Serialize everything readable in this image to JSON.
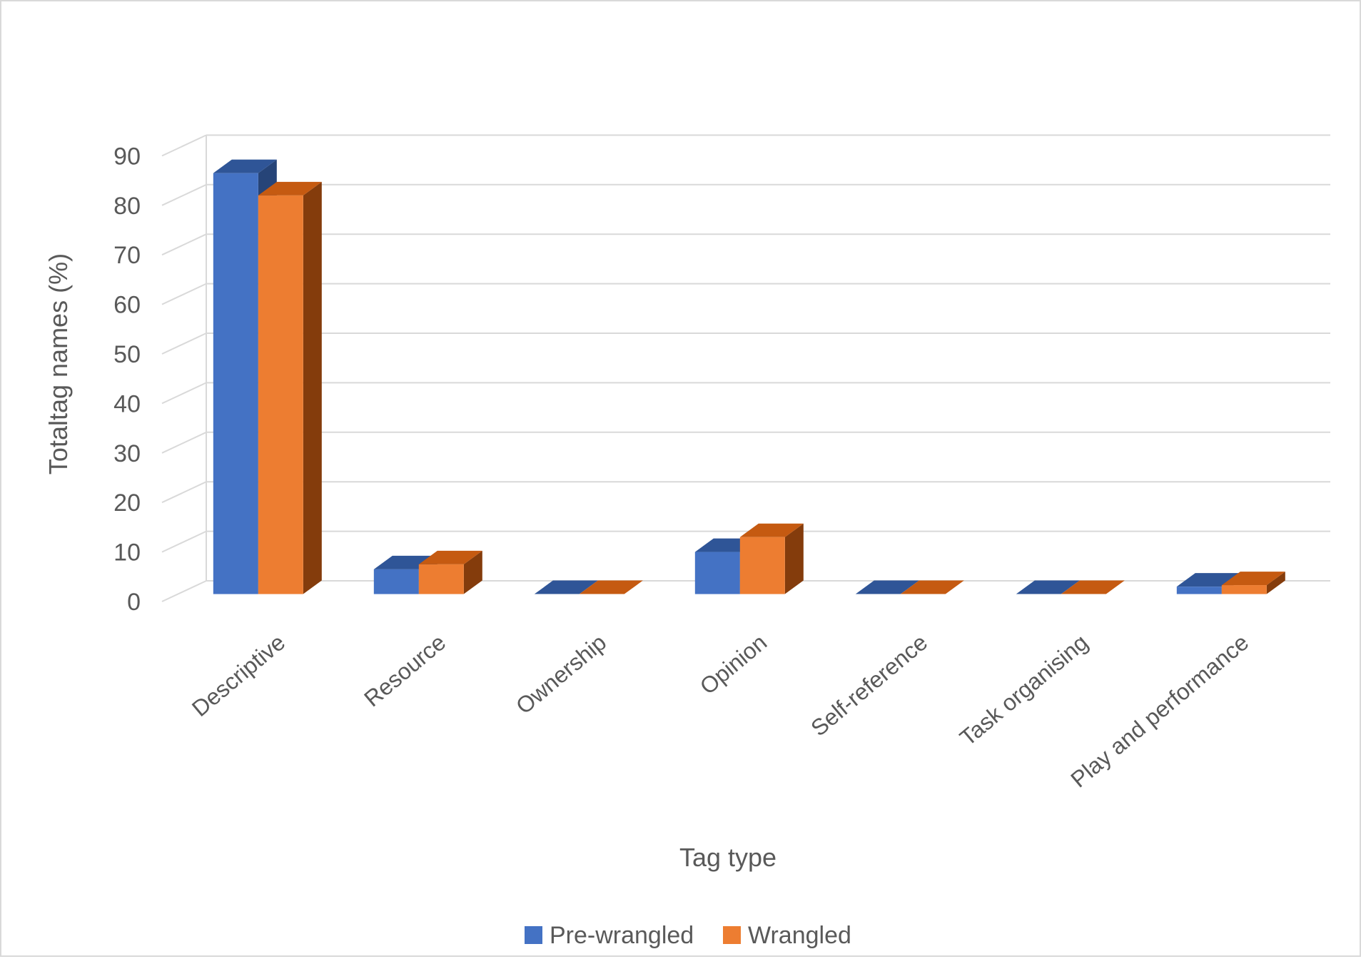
{
  "chart_data": {
    "type": "bar",
    "title": "",
    "xlabel": "Tag type",
    "ylabel": "Totaltag names (%)",
    "ylim": [
      0,
      90
    ],
    "yticks": [
      0,
      10,
      20,
      30,
      40,
      50,
      60,
      70,
      80,
      90
    ],
    "categories": [
      "Descriptive",
      "Resource",
      "Ownership",
      "Opinion",
      "Self-reference",
      "Task organising",
      "Play and performance"
    ],
    "series": [
      {
        "name": "Pre-wrangled",
        "values": [
          85,
          5,
          0,
          8.5,
          0,
          0,
          1.5
        ],
        "color": "#4472c4",
        "top_color": "#2f5597",
        "side_color": "#264478"
      },
      {
        "name": "Wrangled",
        "values": [
          80.5,
          6,
          0,
          11.5,
          0,
          0,
          1.8
        ],
        "color": "#ed7d31",
        "top_color": "#c55a11",
        "side_color": "#843c0c"
      }
    ],
    "grid": true,
    "legend": "bottom",
    "style": "3d-clustered-column"
  }
}
